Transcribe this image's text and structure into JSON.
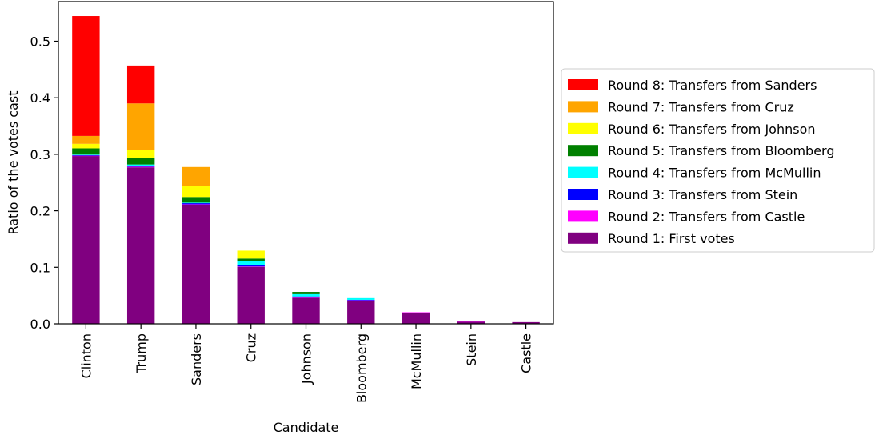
{
  "chart_data": {
    "type": "bar",
    "stacked": true,
    "xlabel": "Candidate",
    "ylabel": "Ratio of the votes cast",
    "ylim": [
      0,
      0.57
    ],
    "yticks": [
      "0.0",
      "0.1",
      "0.2",
      "0.3",
      "0.4",
      "0.5"
    ],
    "grid": false,
    "legend_position": "right",
    "categories": [
      "Clinton",
      "Trump",
      "Sanders",
      "Cruz",
      "Johnson",
      "Bloomberg",
      "McMullin",
      "Stein",
      "Castle"
    ],
    "series": [
      {
        "name": "Round 1: First votes",
        "color": "#800080",
        "values": [
          0.297,
          0.277,
          0.211,
          0.101,
          0.046,
          0.041,
          0.02,
          0.004,
          0.003
        ]
      },
      {
        "name": "Round 2: Transfers from Castle",
        "color": "#ff00ff",
        "values": [
          0.0005,
          0.001,
          0.0005,
          0.0005,
          0.0005,
          0.0005,
          0.0005,
          0.0005,
          0
        ]
      },
      {
        "name": "Round 3: Transfers from Stein",
        "color": "#0000ff",
        "values": [
          0.001,
          0.001,
          0.002,
          0.002,
          0.002,
          0.001,
          0,
          0,
          0
        ]
      },
      {
        "name": "Round 4: Transfers from McMullin",
        "color": "#00ffff",
        "values": [
          0.001,
          0.003,
          0.001,
          0.008,
          0.004,
          0.003,
          0,
          0,
          0
        ]
      },
      {
        "name": "Round 5: Transfers from Bloomberg",
        "color": "#008000",
        "values": [
          0.011,
          0.011,
          0.01,
          0.004,
          0.004,
          0,
          0,
          0,
          0
        ]
      },
      {
        "name": "Round 6: Transfers from Johnson",
        "color": "#ffff00",
        "values": [
          0.008,
          0.014,
          0.02,
          0.014,
          0,
          0,
          0,
          0,
          0
        ]
      },
      {
        "name": "Round 7: Transfers from Cruz",
        "color": "#ffa500",
        "values": [
          0.014,
          0.083,
          0.033,
          0,
          0,
          0,
          0,
          0,
          0
        ]
      },
      {
        "name": "Round 8: Transfers from Sanders",
        "color": "#ff0000",
        "values": [
          0.212,
          0.067,
          0,
          0,
          0,
          0,
          0,
          0,
          0
        ]
      }
    ]
  }
}
